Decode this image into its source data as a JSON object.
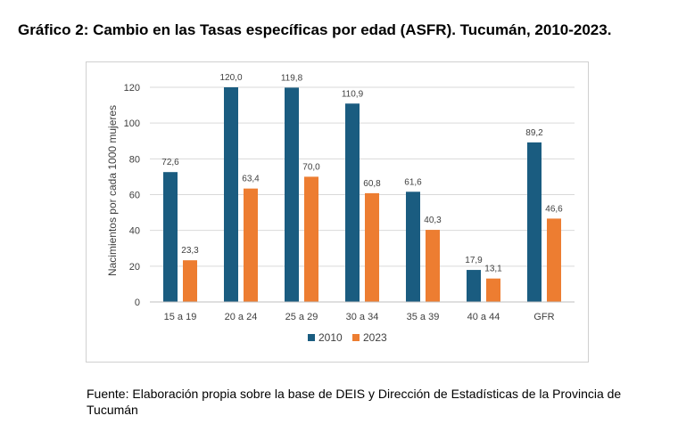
{
  "figure": {
    "title": "Gráfico 2: Cambio en las Tasas específicas por edad (ASFR). Tucumán, 2010-2023.",
    "source": "Fuente: Elaboración propia sobre la base de DEIS y Dirección de Estadísticas de la Provincia de Tucumán"
  },
  "chart_data": {
    "type": "bar",
    "title": "",
    "xlabel": "",
    "ylabel": "Nacimientos por cada 1000 mujeres",
    "categories": [
      "15 a 19",
      "20 a 24",
      "25 a 29",
      "30 a 34",
      "35 a 39",
      "40 a 44",
      "GFR"
    ],
    "series": [
      {
        "name": "2010",
        "color": "#1a5c80",
        "values": [
          72.6,
          120.0,
          119.8,
          110.9,
          61.6,
          17.9,
          89.2
        ],
        "labels": [
          "72,6",
          "120,0",
          "119,8",
          "110,9",
          "61,6",
          "17,9",
          "89,2"
        ]
      },
      {
        "name": "2023",
        "color": "#ed7d31",
        "values": [
          23.3,
          63.4,
          70.0,
          60.8,
          40.3,
          13.1,
          46.6
        ],
        "labels": [
          "23,3",
          "63,4",
          "70,0",
          "60,8",
          "40,3",
          "13,1",
          "46,6"
        ]
      }
    ],
    "ylim": [
      0,
      120
    ],
    "yticks": [
      0,
      20,
      40,
      60,
      80,
      100,
      120
    ],
    "grid": true,
    "legend": "bottom-center"
  }
}
